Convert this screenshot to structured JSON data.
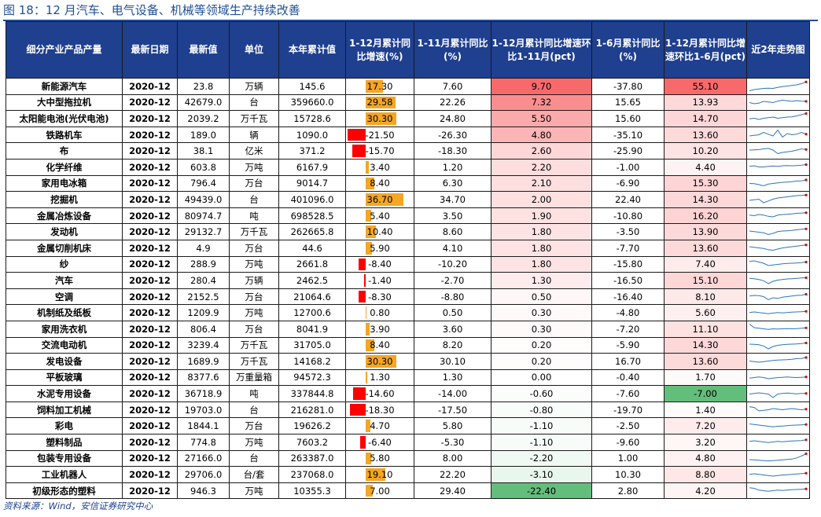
{
  "figure_title": "图 18：12 月汽车、电气设备、机械等领域生产持续改善",
  "source_note": "资料来源：Wind，安信证券研究中心",
  "headers": [
    "细分产业产品产量",
    "最新日期",
    "最新值",
    "单位",
    "本年累计值",
    "1-12月累计同比增速(%)",
    "1-11月累计同比(%)",
    "1-12月累计同比增速环比1-11月(pct)",
    "1-6月累计同比(%)",
    "1-12月累计同比增速环比1-6月(pct)",
    "近2年走势图"
  ],
  "colors": {
    "header_bg": "#1f3f8f",
    "bar_positive": "#f5a623",
    "bar_negative": "#ff0000",
    "heat_red": "#f8696b",
    "heat_green": "#63be7b"
  },
  "rows": [
    {
      "name": "新能源汽车",
      "date": "2020-12",
      "latest": "23.8",
      "unit": "万辆",
      "ytd": "145.6",
      "yoy": "17.30",
      "yoy_nov": "7.60",
      "diff_nov": "9.70",
      "yoy_jun": "-37.80",
      "diff_jun": "55.10"
    },
    {
      "name": "大中型拖拉机",
      "date": "2020-12",
      "latest": "42679.0",
      "unit": "台",
      "ytd": "359660.0",
      "yoy": "29.58",
      "yoy_nov": "22.26",
      "diff_nov": "7.32",
      "yoy_jun": "15.65",
      "diff_jun": "13.93"
    },
    {
      "name": "太阳能电池(光伏电池)",
      "date": "2020-12",
      "latest": "2039.2",
      "unit": "万千瓦",
      "ytd": "15728.6",
      "yoy": "30.30",
      "yoy_nov": "24.80",
      "diff_nov": "5.50",
      "yoy_jun": "15.60",
      "diff_jun": "14.70"
    },
    {
      "name": "铁路机车",
      "date": "2020-12",
      "latest": "189.0",
      "unit": "辆",
      "ytd": "1090.0",
      "yoy": "-21.50",
      "yoy_nov": "-26.30",
      "diff_nov": "4.80",
      "yoy_jun": "-35.10",
      "diff_jun": "13.60"
    },
    {
      "name": "布",
      "date": "2020-12",
      "latest": "38.1",
      "unit": "亿米",
      "ytd": "371.2",
      "yoy": "-15.70",
      "yoy_nov": "-18.30",
      "diff_nov": "2.60",
      "yoy_jun": "-25.90",
      "diff_jun": "10.20"
    },
    {
      "name": "化学纤维",
      "date": "2020-12",
      "latest": "603.8",
      "unit": "万吨",
      "ytd": "6167.9",
      "yoy": "3.40",
      "yoy_nov": "1.20",
      "diff_nov": "2.20",
      "yoy_jun": "-1.00",
      "diff_jun": "4.40"
    },
    {
      "name": "家用电冰箱",
      "date": "2020-12",
      "latest": "796.4",
      "unit": "万台",
      "ytd": "9014.7",
      "yoy": "8.40",
      "yoy_nov": "6.30",
      "diff_nov": "2.10",
      "yoy_jun": "-6.90",
      "diff_jun": "15.30"
    },
    {
      "name": "挖掘机",
      "date": "2020-12",
      "latest": "49439.0",
      "unit": "台",
      "ytd": "401096.0",
      "yoy": "36.70",
      "yoy_nov": "34.70",
      "diff_nov": "2.00",
      "yoy_jun": "22.40",
      "diff_jun": "14.30"
    },
    {
      "name": "金属冶炼设备",
      "date": "2020-12",
      "latest": "80974.7",
      "unit": "吨",
      "ytd": "698528.5",
      "yoy": "5.40",
      "yoy_nov": "3.50",
      "diff_nov": "1.90",
      "yoy_jun": "-10.80",
      "diff_jun": "16.20"
    },
    {
      "name": "发动机",
      "date": "2020-12",
      "latest": "29132.7",
      "unit": "万千瓦",
      "ytd": "262665.8",
      "yoy": "10.40",
      "yoy_nov": "8.60",
      "diff_nov": "1.80",
      "yoy_jun": "-3.50",
      "diff_jun": "13.90"
    },
    {
      "name": "金属切削机床",
      "date": "2020-12",
      "latest": "4.9",
      "unit": "万台",
      "ytd": "44.6",
      "yoy": "5.90",
      "yoy_nov": "4.10",
      "diff_nov": "1.80",
      "yoy_jun": "-7.70",
      "diff_jun": "13.60"
    },
    {
      "name": "纱",
      "date": "2020-12",
      "latest": "288.9",
      "unit": "万吨",
      "ytd": "2661.8",
      "yoy": "-8.40",
      "yoy_nov": "-10.20",
      "diff_nov": "1.80",
      "yoy_jun": "-15.80",
      "diff_jun": "7.40"
    },
    {
      "name": "汽车",
      "date": "2020-12",
      "latest": "280.4",
      "unit": "万辆",
      "ytd": "2462.5",
      "yoy": "-1.40",
      "yoy_nov": "-2.70",
      "diff_nov": "1.30",
      "yoy_jun": "-16.50",
      "diff_jun": "15.10"
    },
    {
      "name": "空调",
      "date": "2020-12",
      "latest": "2152.5",
      "unit": "万台",
      "ytd": "21064.6",
      "yoy": "-8.30",
      "yoy_nov": "-8.80",
      "diff_nov": "0.50",
      "yoy_jun": "-16.40",
      "diff_jun": "8.10"
    },
    {
      "name": "机制纸及纸板",
      "date": "2020-12",
      "latest": "1209.9",
      "unit": "万吨",
      "ytd": "12700.6",
      "yoy": "0.80",
      "yoy_nov": "0.50",
      "diff_nov": "0.30",
      "yoy_jun": "-4.80",
      "diff_jun": "5.60"
    },
    {
      "name": "家用洗衣机",
      "date": "2020-12",
      "latest": "806.4",
      "unit": "万台",
      "ytd": "8041.9",
      "yoy": "3.90",
      "yoy_nov": "3.60",
      "diff_nov": "0.30",
      "yoy_jun": "-7.20",
      "diff_jun": "11.10"
    },
    {
      "name": "交流电动机",
      "date": "2020-12",
      "latest": "3239.4",
      "unit": "万千瓦",
      "ytd": "31705.0",
      "yoy": "8.40",
      "yoy_nov": "8.20",
      "diff_nov": "0.20",
      "yoy_jun": "-5.90",
      "diff_jun": "14.30"
    },
    {
      "name": "发电设备",
      "date": "2020-12",
      "latest": "1689.9",
      "unit": "万千瓦",
      "ytd": "14168.2",
      "yoy": "30.30",
      "yoy_nov": "30.10",
      "diff_nov": "0.20",
      "yoy_jun": "16.70",
      "diff_jun": "13.60"
    },
    {
      "name": "平板玻璃",
      "date": "2020-12",
      "latest": "8377.6",
      "unit": "万重量箱",
      "ytd": "94572.3",
      "yoy": "1.30",
      "yoy_nov": "1.30",
      "diff_nov": "0.00",
      "yoy_jun": "-0.40",
      "diff_jun": "1.70"
    },
    {
      "name": "水泥专用设备",
      "date": "2020-12",
      "latest": "36718.9",
      "unit": "吨",
      "ytd": "337844.8",
      "yoy": "-14.60",
      "yoy_nov": "-14.00",
      "diff_nov": "-0.60",
      "yoy_jun": "-7.60",
      "diff_jun": "-7.00"
    },
    {
      "name": "饲料加工机械",
      "date": "2020-12",
      "latest": "19703.0",
      "unit": "台",
      "ytd": "216281.0",
      "yoy": "-18.30",
      "yoy_nov": "-17.50",
      "diff_nov": "-0.80",
      "yoy_jun": "-19.70",
      "diff_jun": "1.40"
    },
    {
      "name": "彩电",
      "date": "2020-12",
      "latest": "1844.1",
      "unit": "万台",
      "ytd": "19626.2",
      "yoy": "4.70",
      "yoy_nov": "5.80",
      "diff_nov": "-1.10",
      "yoy_jun": "-2.50",
      "diff_jun": "7.20"
    },
    {
      "name": "塑料制品",
      "date": "2020-12",
      "latest": "774.8",
      "unit": "万吨",
      "ytd": "7603.2",
      "yoy": "-6.40",
      "yoy_nov": "-5.30",
      "diff_nov": "-1.10",
      "yoy_jun": "-9.60",
      "diff_jun": "3.20"
    },
    {
      "name": "包装专用设备",
      "date": "2020-12",
      "latest": "27166.0",
      "unit": "台",
      "ytd": "263387.0",
      "yoy": "5.80",
      "yoy_nov": "8.00",
      "diff_nov": "-2.20",
      "yoy_jun": "1.00",
      "diff_jun": "4.80"
    },
    {
      "name": "工业机器人",
      "date": "2020-12",
      "latest": "29706.0",
      "unit": "台/套",
      "ytd": "237068.0",
      "yoy": "19.10",
      "yoy_nov": "22.20",
      "diff_nov": "-3.10",
      "yoy_jun": "10.30",
      "diff_jun": "8.80"
    },
    {
      "name": "初级形态的塑料",
      "date": "2020-12",
      "latest": "946.3",
      "unit": "万吨",
      "ytd": "10355.3",
      "yoy": "7.00",
      "yoy_nov": "29.40",
      "diff_nov": "-22.40",
      "yoy_jun": "2.80",
      "diff_jun": "4.20"
    }
  ],
  "sparklines": [
    [
      0.1,
      0.2,
      0.25,
      0.3,
      0.32,
      0.3,
      0.38,
      0.45,
      0.5,
      0.55,
      0.6,
      0.7,
      0.85
    ],
    [
      0.5,
      0.4,
      0.45,
      0.6,
      0.55,
      0.5,
      0.62,
      0.7,
      0.65,
      0.6,
      0.66,
      0.62,
      0.6
    ],
    [
      0.45,
      0.5,
      0.4,
      0.5,
      0.55,
      0.6,
      0.5,
      0.55,
      0.6,
      0.62,
      0.7,
      0.8,
      0.9
    ],
    [
      0.4,
      0.45,
      0.5,
      0.7,
      0.55,
      0.4,
      0.9,
      0.3,
      0.6,
      0.5,
      0.55,
      0.7,
      0.55
    ],
    [
      0.6,
      0.62,
      0.64,
      0.7,
      0.75,
      0.6,
      0.3,
      0.4,
      0.45,
      0.5,
      0.6,
      0.7,
      0.65
    ],
    [
      0.55,
      0.6,
      0.5,
      0.5,
      0.55,
      0.58,
      0.55,
      0.6,
      0.62,
      0.6,
      0.62,
      0.65,
      0.7
    ],
    [
      0.5,
      0.48,
      0.4,
      0.3,
      0.45,
      0.5,
      0.55,
      0.6,
      0.62,
      0.65,
      0.7,
      0.72,
      0.8
    ],
    [
      0.4,
      0.45,
      0.5,
      0.2,
      0.35,
      0.5,
      0.6,
      0.65,
      0.7,
      0.75,
      0.8,
      0.82,
      0.85
    ],
    [
      0.55,
      0.5,
      0.6,
      0.55,
      0.45,
      0.4,
      0.55,
      0.6,
      0.62,
      0.65,
      0.7,
      0.72,
      0.75
    ],
    [
      0.6,
      0.55,
      0.5,
      0.45,
      0.3,
      0.4,
      0.55,
      0.6,
      0.62,
      0.65,
      0.7,
      0.75,
      0.78
    ],
    [
      0.6,
      0.55,
      0.5,
      0.45,
      0.35,
      0.3,
      0.4,
      0.5,
      0.55,
      0.6,
      0.65,
      0.7,
      0.75
    ],
    [
      0.75,
      0.8,
      0.7,
      0.6,
      0.4,
      0.45,
      0.5,
      0.55,
      0.58,
      0.6,
      0.62,
      0.65,
      0.7
    ],
    [
      0.65,
      0.62,
      0.55,
      0.45,
      0.2,
      0.4,
      0.5,
      0.55,
      0.6,
      0.62,
      0.65,
      0.68,
      0.7
    ],
    [
      0.55,
      0.6,
      0.58,
      0.5,
      0.25,
      0.4,
      0.35,
      0.45,
      0.5,
      0.55,
      0.6,
      0.62,
      0.7
    ],
    [
      0.55,
      0.6,
      0.55,
      0.5,
      0.45,
      0.5,
      0.55,
      0.52,
      0.55,
      0.58,
      0.6,
      0.62,
      0.65
    ],
    [
      0.9,
      0.6,
      0.55,
      0.5,
      0.45,
      0.5,
      0.48,
      0.5,
      0.52,
      0.5,
      0.52,
      0.55,
      0.58
    ],
    [
      0.6,
      0.58,
      0.55,
      0.45,
      0.2,
      0.4,
      0.5,
      0.55,
      0.58,
      0.6,
      0.62,
      0.65,
      0.7
    ],
    [
      0.5,
      0.45,
      0.4,
      0.45,
      0.5,
      0.55,
      0.58,
      0.6,
      0.62,
      0.65,
      0.7,
      0.72,
      0.8
    ],
    [
      0.45,
      0.5,
      0.55,
      0.5,
      0.4,
      0.45,
      0.5,
      0.52,
      0.55,
      0.52,
      0.5,
      0.52,
      0.55
    ],
    [
      0.5,
      0.55,
      0.6,
      0.55,
      0.5,
      0.2,
      0.5,
      0.55,
      0.58,
      0.55,
      0.52,
      0.55,
      0.55
    ],
    [
      0.75,
      0.7,
      0.4,
      0.45,
      0.5,
      0.6,
      0.55,
      0.5,
      0.55,
      0.6,
      0.55,
      0.5,
      0.55
    ],
    [
      0.7,
      0.65,
      0.6,
      0.55,
      0.5,
      0.45,
      0.5,
      0.52,
      0.55,
      0.58,
      0.6,
      0.62,
      0.65
    ],
    [
      0.55,
      0.6,
      0.55,
      0.5,
      0.45,
      0.5,
      0.55,
      0.52,
      0.55,
      0.58,
      0.6,
      0.62,
      0.68
    ],
    [
      0.4,
      0.38,
      0.35,
      0.32,
      0.3,
      0.32,
      0.35,
      0.38,
      0.42,
      0.45,
      0.55,
      0.7,
      0.9
    ],
    [
      0.55,
      0.6,
      0.55,
      0.5,
      0.45,
      0.4,
      0.45,
      0.5,
      0.52,
      0.55,
      0.58,
      0.62,
      0.65
    ],
    [
      0.75,
      0.7,
      0.55,
      0.5,
      0.45,
      0.5,
      0.55,
      0.52,
      0.55,
      0.58,
      0.6,
      0.62,
      0.65
    ]
  ]
}
